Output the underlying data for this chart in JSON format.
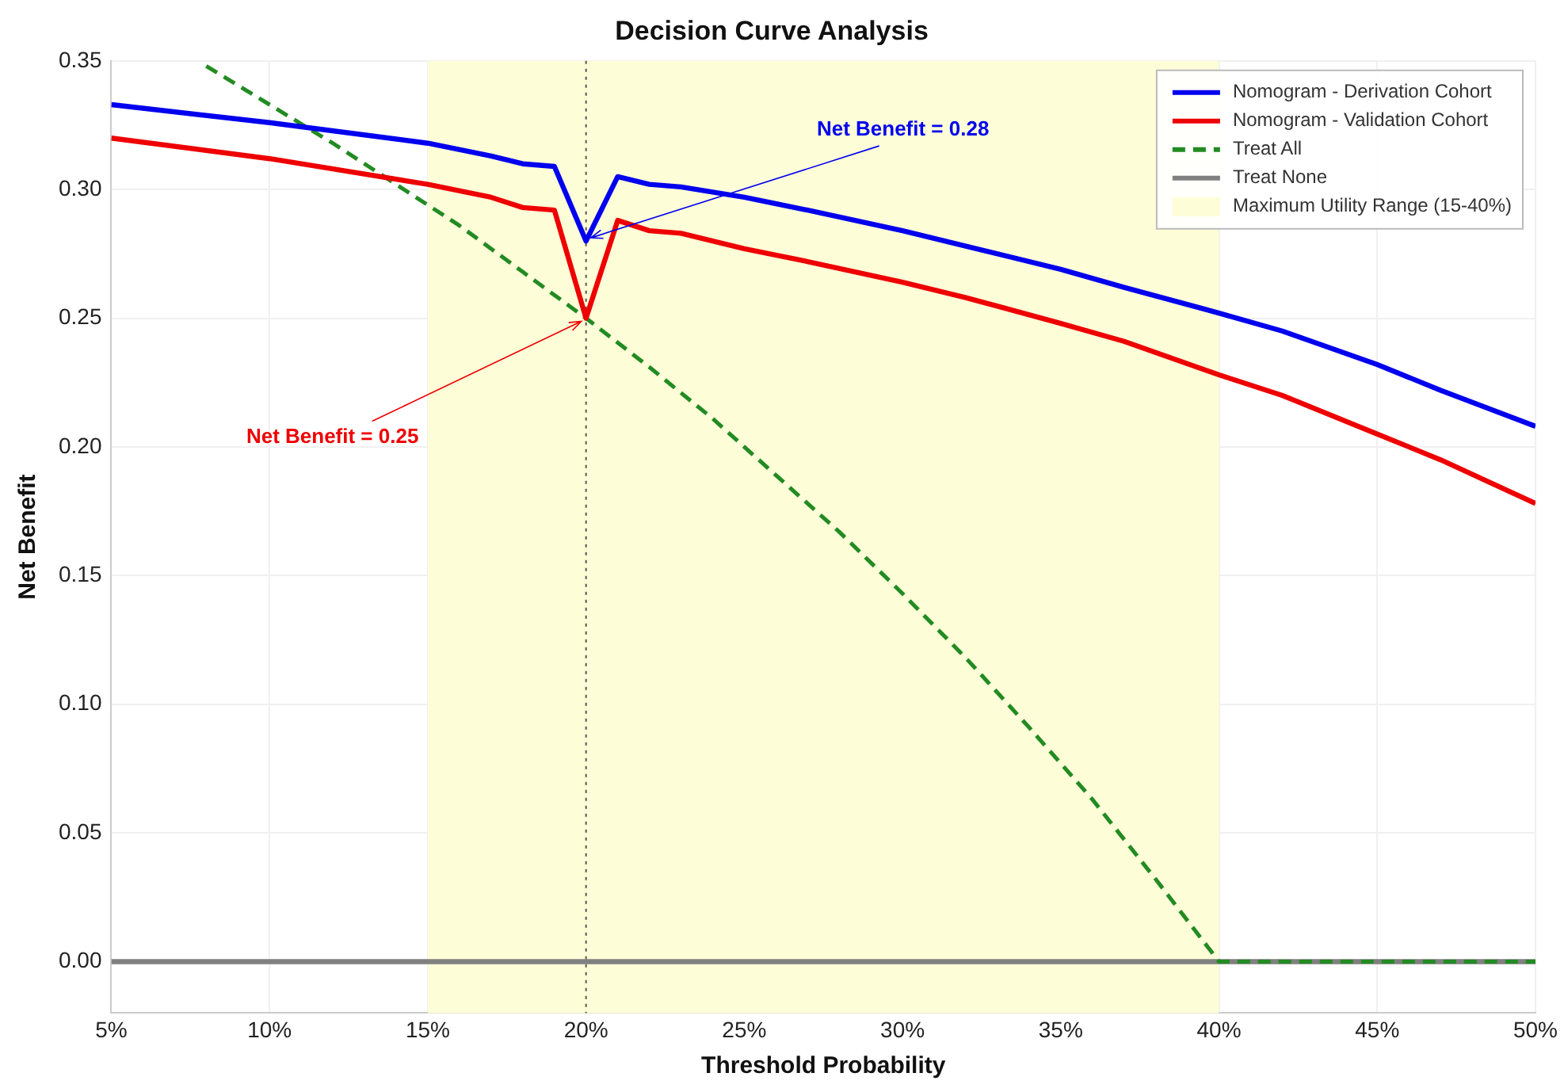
{
  "chart_data": {
    "type": "line",
    "title": "Decision Curve Analysis",
    "xlabel": "Threshold Probability",
    "ylabel": "Net Benefit",
    "xlim": [
      5,
      50
    ],
    "xticks": [
      {
        "value": 5,
        "label": "5%"
      },
      {
        "value": 10,
        "label": "10%"
      },
      {
        "value": 15,
        "label": "15%"
      },
      {
        "value": 20,
        "label": "20%"
      },
      {
        "value": 25,
        "label": "25%"
      },
      {
        "value": 30,
        "label": "30%"
      },
      {
        "value": 35,
        "label": "35%"
      },
      {
        "value": 40,
        "label": "40%"
      },
      {
        "value": 45,
        "label": "45%"
      },
      {
        "value": 50,
        "label": "50%"
      }
    ],
    "ylim": [
      -0.02,
      0.35
    ],
    "yticks": [
      {
        "value": 0,
        "label": "0.00"
      },
      {
        "value": 0.05,
        "label": "0.05"
      },
      {
        "value": 0.1,
        "label": "0.10"
      },
      {
        "value": 0.15,
        "label": "0.15"
      },
      {
        "value": 0.2,
        "label": "0.20"
      },
      {
        "value": 0.25,
        "label": "0.25"
      },
      {
        "value": 0.3,
        "label": "0.30"
      },
      {
        "value": 0.35,
        "label": "0.35"
      }
    ],
    "grid": true,
    "legend": "top right",
    "marker": "none",
    "series": [
      {
        "name": "Nomogram - Derivation Cohort",
        "color": "#0000ee",
        "line_style": "solid",
        "x": [
          5,
          10,
          15,
          17,
          18,
          19,
          20,
          21,
          22,
          23,
          25,
          27,
          30,
          32,
          35,
          37,
          40,
          42,
          45,
          47,
          50
        ],
        "values": [
          0.333,
          0.326,
          0.318,
          0.313,
          0.31,
          0.309,
          0.28,
          0.305,
          0.302,
          0.301,
          0.297,
          0.292,
          0.284,
          0.278,
          0.269,
          0.262,
          0.252,
          0.245,
          0.232,
          0.222,
          0.208
        ]
      },
      {
        "name": "Nomogram - Validation Cohort",
        "color": "#ee0000",
        "line_style": "solid",
        "x": [
          5,
          10,
          15,
          17,
          18,
          19,
          20,
          21,
          22,
          23,
          25,
          27,
          30,
          32,
          35,
          37,
          40,
          42,
          45,
          47,
          50
        ],
        "values": [
          0.32,
          0.312,
          0.302,
          0.297,
          0.293,
          0.292,
          0.25,
          0.288,
          0.284,
          0.283,
          0.277,
          0.272,
          0.264,
          0.258,
          0.248,
          0.241,
          0.228,
          0.22,
          0.205,
          0.195,
          0.178
        ]
      },
      {
        "name": "Treat All",
        "color": "#228b22",
        "line_style": "dashed",
        "x": [
          8,
          10,
          12,
          14,
          16,
          18,
          20,
          22,
          24,
          26,
          28,
          30,
          32,
          34,
          36,
          38,
          40,
          45,
          50
        ],
        "values": [
          0.348,
          0.333,
          0.318,
          0.302,
          0.286,
          0.268,
          0.25,
          0.231,
          0.211,
          0.189,
          0.167,
          0.143,
          0.118,
          0.091,
          0.063,
          0.032,
          0,
          0,
          0
        ]
      },
      {
        "name": "Treat None",
        "color": "#808080",
        "line_style": "solid",
        "x": [
          5,
          50
        ],
        "values": [
          0,
          0
        ]
      }
    ],
    "bands": [
      {
        "axis": "x",
        "from": 15,
        "to": 40,
        "label": "Maximum Utility Range (15-40%)",
        "color": "#fdfdd8"
      }
    ],
    "ref_lines": [
      {
        "axis": "x",
        "value": 20,
        "color": "#555555",
        "line_style": "dotted"
      }
    ],
    "annotations": [
      {
        "text": "Net Benefit = 0.28",
        "x": 20,
        "y": 0.28
      },
      {
        "text": "Net Benefit = 0.25",
        "x": 20,
        "y": 0.25
      }
    ]
  }
}
